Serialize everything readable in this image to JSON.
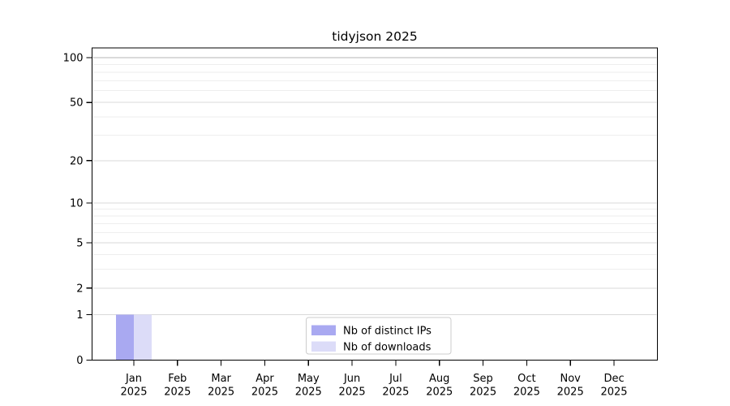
{
  "chart_data": {
    "type": "bar",
    "title": "tidyjson 2025",
    "categories": [
      "Jan",
      "Feb",
      "Mar",
      "Apr",
      "May",
      "Jun",
      "Jul",
      "Aug",
      "Sep",
      "Oct",
      "Nov",
      "Dec"
    ],
    "category_year": "2025",
    "series": [
      {
        "name": "Nb of distinct IPs",
        "color": "#a9a9f1",
        "values": [
          1,
          0,
          0,
          0,
          0,
          0,
          0,
          0,
          0,
          0,
          0,
          0
        ]
      },
      {
        "name": "Nb of downloads",
        "color": "#dcdcf8",
        "values": [
          1,
          0,
          0,
          0,
          0,
          0,
          0,
          0,
          0,
          0,
          0,
          0
        ]
      }
    ],
    "y_axis": {
      "scale": "log1p",
      "major_ticks": [
        0,
        1,
        2,
        5,
        10,
        20,
        50,
        100
      ],
      "minor_gridlines": [
        3,
        4,
        6,
        7,
        8,
        9,
        30,
        40,
        60,
        70,
        80,
        90
      ],
      "range_top": 116.2
    },
    "x_axis": {
      "tick_labels_two_lines": true
    },
    "legend": {
      "position": "bottom-center"
    },
    "grid": "horizontal"
  },
  "colors": {
    "background": "#ffffff",
    "spine": "#000000",
    "tick_mark": "#000000",
    "grid_minor": "#eeeeee",
    "grid_major": "#d9d9d9",
    "grid_top": "#b5b5b5",
    "legend_border": "#cccccc",
    "legend_fill": "#ffffff"
  }
}
